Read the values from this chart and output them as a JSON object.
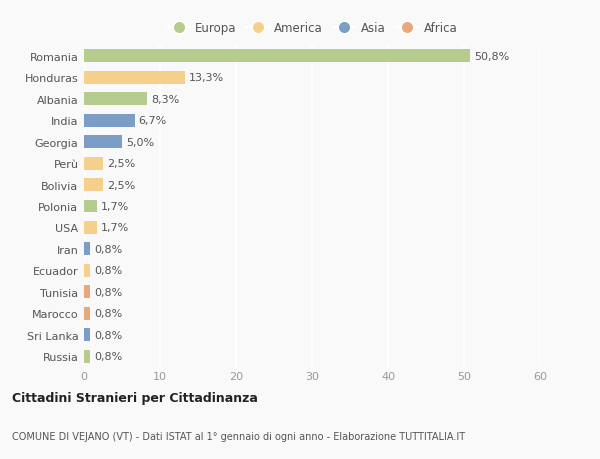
{
  "countries": [
    "Romania",
    "Honduras",
    "Albania",
    "India",
    "Georgia",
    "Perù",
    "Bolivia",
    "Polonia",
    "USA",
    "Iran",
    "Ecuador",
    "Tunisia",
    "Marocco",
    "Sri Lanka",
    "Russia"
  ],
  "values": [
    50.8,
    13.3,
    8.3,
    6.7,
    5.0,
    2.5,
    2.5,
    1.7,
    1.7,
    0.8,
    0.8,
    0.8,
    0.8,
    0.8,
    0.8
  ],
  "labels": [
    "50,8%",
    "13,3%",
    "8,3%",
    "6,7%",
    "5,0%",
    "2,5%",
    "2,5%",
    "1,7%",
    "1,7%",
    "0,8%",
    "0,8%",
    "0,8%",
    "0,8%",
    "0,8%",
    "0,8%"
  ],
  "categories": [
    "Europa",
    "America",
    "Europa",
    "Asia",
    "Asia",
    "America",
    "America",
    "Europa",
    "America",
    "Asia",
    "America",
    "Africa",
    "Africa",
    "Asia",
    "Europa"
  ],
  "colors": {
    "Europa": "#b5cc8e",
    "America": "#f5d08c",
    "Asia": "#7b9dc6",
    "Africa": "#e8a87c"
  },
  "legend_order": [
    "Europa",
    "America",
    "Asia",
    "Africa"
  ],
  "xlim": [
    0,
    60
  ],
  "xticks": [
    0,
    10,
    20,
    30,
    40,
    50,
    60
  ],
  "title": "Cittadini Stranieri per Cittadinanza",
  "subtitle": "COMUNE DI VEJANO (VT) - Dati ISTAT al 1° gennaio di ogni anno - Elaborazione TUTTITALIA.IT",
  "bg_color": "#f9f9f9",
  "plot_bg_color": "#f9f9f9",
  "grid_color": "#ffffff",
  "bar_height": 0.6,
  "label_fontsize": 8,
  "ytick_fontsize": 8,
  "xtick_fontsize": 8
}
